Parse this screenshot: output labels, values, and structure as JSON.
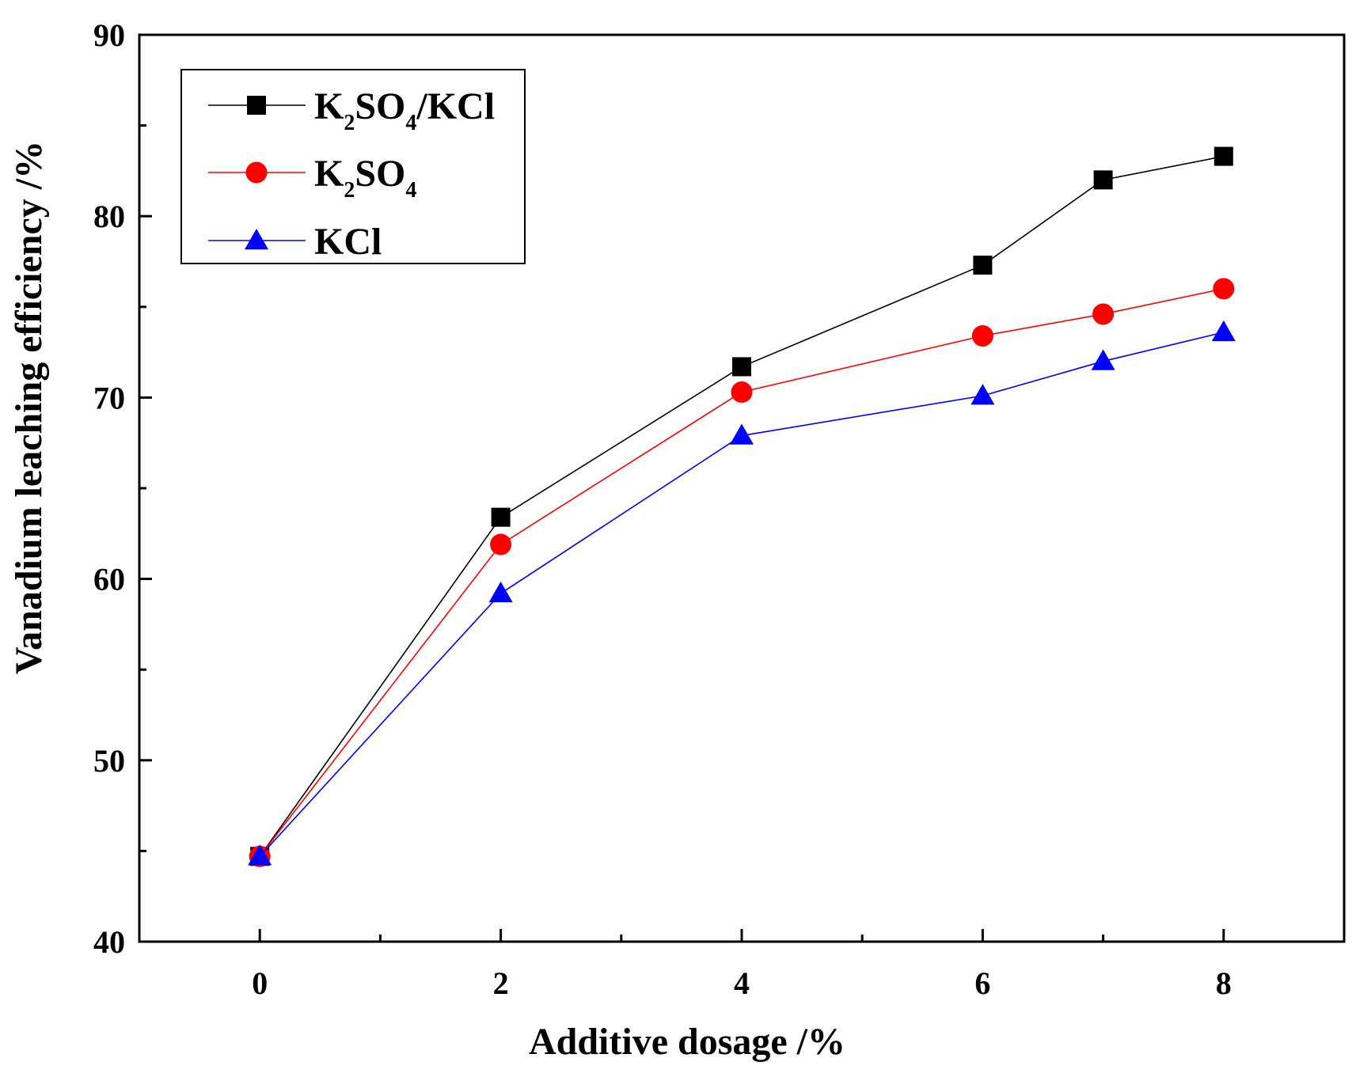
{
  "chart_data": {
    "type": "line",
    "title": "",
    "xlabel": "Additive dosage /%",
    "ylabel": "Vanadium leaching efficiency /%",
    "xlim": [
      -1,
      9
    ],
    "ylim": [
      40,
      90
    ],
    "xticks": [
      0,
      2,
      4,
      6,
      8
    ],
    "yticks": [
      40,
      50,
      60,
      70,
      80,
      90
    ],
    "x_minor_ticks": [
      1,
      3,
      5,
      7
    ],
    "y_minor_ticks": [
      45,
      55,
      65,
      75,
      85
    ],
    "grid": false,
    "legend_position": "top-left",
    "series": [
      {
        "name": "K2SO4/KCl",
        "label_parts": [
          [
            "K",
            ""
          ],
          [
            "2",
            "sub"
          ],
          [
            "SO",
            ""
          ],
          [
            "4",
            "sub"
          ],
          [
            "/KCl",
            ""
          ]
        ],
        "color": "#000000",
        "marker": "square",
        "x": [
          0,
          2,
          4,
          6,
          7,
          8
        ],
        "values": [
          44.7,
          63.4,
          71.7,
          77.3,
          82.0,
          83.3
        ]
      },
      {
        "name": "K2SO4",
        "label_parts": [
          [
            "K",
            ""
          ],
          [
            "2",
            "sub"
          ],
          [
            "SO",
            ""
          ],
          [
            "4",
            "sub"
          ]
        ],
        "color": "#ff0000",
        "marker": "circle",
        "x": [
          0,
          2,
          4,
          6,
          7,
          8
        ],
        "values": [
          44.7,
          61.9,
          70.3,
          73.4,
          74.6,
          76.0
        ]
      },
      {
        "name": "KCl",
        "label_parts": [
          [
            "KCl",
            ""
          ]
        ],
        "color": "#0000ff",
        "marker": "triangle",
        "x": [
          0,
          2,
          4,
          6,
          7,
          8
        ],
        "values": [
          44.7,
          59.2,
          67.9,
          70.1,
          72.0,
          73.6
        ]
      }
    ]
  }
}
